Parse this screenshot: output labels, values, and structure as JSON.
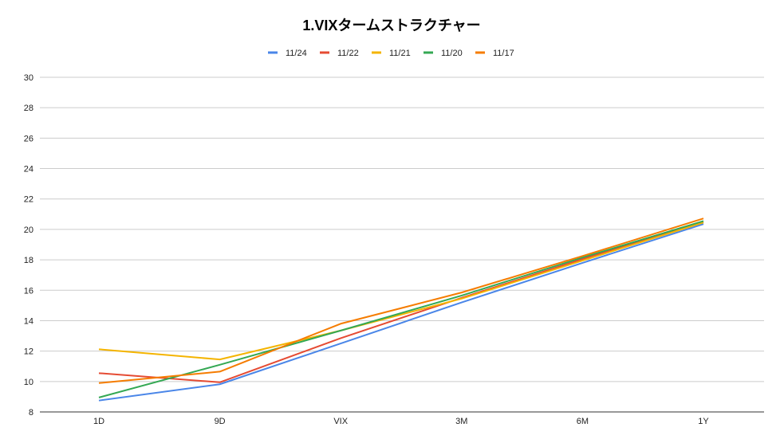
{
  "chart_data": {
    "type": "line",
    "title": "1.VIXタームストラクチャー",
    "xlabel": "",
    "ylabel": "",
    "categories": [
      "1D",
      "9D",
      "VIX",
      "3M",
      "6M",
      "1Y"
    ],
    "ylim": [
      8,
      30
    ],
    "yticks": [
      8,
      10,
      12,
      14,
      16,
      18,
      20,
      22,
      24,
      26,
      28,
      30
    ],
    "grid": true,
    "legend_position": "top",
    "series": [
      {
        "name": "11/24",
        "color": "#4a86e8",
        "values": [
          8.75,
          9.82,
          12.5,
          15.2,
          17.8,
          20.35
        ]
      },
      {
        "name": "11/22",
        "color": "#e54b33",
        "values": [
          10.55,
          9.95,
          12.85,
          15.5,
          18.05,
          20.5
        ]
      },
      {
        "name": "11/21",
        "color": "#f4b400",
        "values": [
          12.12,
          11.45,
          13.35,
          15.45,
          17.95,
          20.45
        ]
      },
      {
        "name": "11/20",
        "color": "#34a853",
        "values": [
          8.95,
          11.1,
          13.35,
          15.65,
          18.15,
          20.55
        ]
      },
      {
        "name": "11/17",
        "color": "#f57c00",
        "values": [
          9.9,
          10.65,
          13.8,
          15.85,
          18.25,
          20.72
        ]
      }
    ]
  }
}
